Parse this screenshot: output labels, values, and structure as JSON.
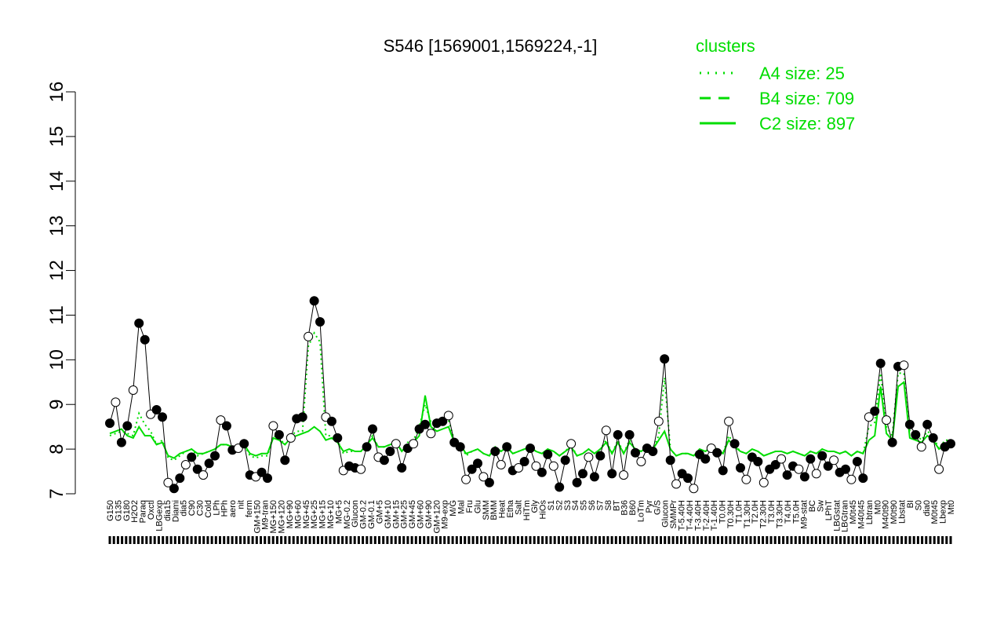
{
  "chart_data": {
    "type": "line",
    "title": "S546 [1569001,1569224,-1]",
    "xlabel": "",
    "ylabel": "",
    "ylim": [
      7,
      16
    ],
    "yticks": [
      7,
      8,
      9,
      10,
      11,
      12,
      13,
      14,
      15,
      16
    ],
    "grid": false,
    "legend": {
      "title": "clusters",
      "placement": "top-right",
      "entries": [
        {
          "label": "A4 size: 25",
          "style": "dotted"
        },
        {
          "label": "B4 size: 709",
          "style": "dashed"
        },
        {
          "label": "C2 size: 897",
          "style": "solid"
        }
      ]
    },
    "colors": {
      "series": "#00dd00",
      "points": "#000000",
      "axis": "#000000"
    },
    "xtick_labels": [
      "G150",
      "G135",
      "G180",
      "H2O2",
      "Paraq",
      "Oxctl",
      "LBGexp",
      "dia15",
      "Diami",
      "dia5",
      "C90",
      "C30",
      "Cold",
      "LPh",
      "HPh",
      "aero",
      "nit",
      "ferm",
      "GM+150",
      "M9-tran",
      "MG+150",
      "MG+120",
      "MG+90",
      "MG+60",
      "MG+45",
      "MG+25",
      "MG+15",
      "MG+10",
      "MG+5",
      "MG-0.2",
      "Glucon",
      "GM-0.2",
      "GM-0.1",
      "GM+5",
      "GM+10",
      "GM+15",
      "GM+25",
      "GM+45",
      "GM+60",
      "GM+90",
      "GM+120",
      "M9-exp",
      "M/G",
      "Mal",
      "Fru",
      "Glu",
      "SMM",
      "BMM",
      "Heat",
      "Etha",
      "Salt",
      "HiTm",
      "Gly",
      "HiOs",
      "S1",
      "S2",
      "S3",
      "S4",
      "S5",
      "S6",
      "S7",
      "S8",
      "BT",
      "B36",
      "B60",
      "LoTm",
      "Pyr",
      "G/S",
      "Glucon",
      "SMMPr",
      "T-5.40H",
      "T-4.40H",
      "T-3.40H",
      "T-2.40H",
      "T-1.40H",
      "T0.0H",
      "T0.30H",
      "T1.0H",
      "T1.30H",
      "T2.0H",
      "T2.30H",
      "T3.0H",
      "T3.30H",
      "T4.0H",
      "T5.0H",
      "M9-stat",
      "BC",
      "Sw",
      "LPhT",
      "LBGstat",
      "LBGtran",
      "M0t45",
      "M40t45",
      "Lbtran",
      "Mt0",
      "M40t90",
      "M0t90",
      "Lbstat",
      "BI",
      "S0",
      "dia0",
      "M0t45",
      "Lbexp",
      "Mt0"
    ],
    "n_points": 207,
    "x_range": [
      1,
      207
    ],
    "points_y": [
      8.58,
      9.05,
      8.15,
      8.52,
      9.32,
      10.82,
      10.45,
      8.78,
      8.88,
      8.72,
      7.25,
      7.12,
      7.35,
      7.65,
      7.82,
      7.55,
      7.42,
      7.68,
      7.85,
      8.65,
      8.52,
      7.98,
      8.02,
      8.12,
      7.42,
      7.38,
      7.48,
      7.35,
      8.52,
      8.32,
      7.75,
      8.25,
      8.68,
      8.72,
      10.52,
      11.32,
      10.85,
      8.72,
      8.62,
      8.25,
      7.52,
      7.62,
      7.58,
      7.55,
      8.05,
      8.45,
      7.82,
      7.75,
      7.95,
      8.12,
      7.58,
      8.02,
      8.12,
      8.45,
      8.55,
      8.35,
      8.58,
      8.62,
      8.75,
      8.15,
      8.05,
      7.32,
      7.55,
      7.68,
      7.38,
      7.25,
      7.95,
      7.65,
      8.05,
      7.52,
      7.58,
      7.72,
      8.02,
      7.62,
      7.48,
      7.88,
      7.62,
      7.15,
      7.75,
      8.12,
      7.25,
      7.45,
      7.82,
      7.38,
      7.85,
      8.42,
      7.45,
      8.32,
      7.42,
      8.32,
      7.92,
      7.72,
      8.02,
      7.95,
      8.62,
      10.02,
      7.75,
      7.22,
      7.45,
      7.35,
      7.12,
      7.88,
      7.78,
      8.02,
      7.92,
      7.52,
      8.62,
      8.12,
      7.58,
      7.32,
      7.82,
      7.72,
      7.25,
      7.55,
      7.65,
      7.78,
      7.42,
      7.62,
      7.55,
      7.38,
      7.78,
      7.45,
      7.85,
      7.62,
      7.75,
      7.48,
      7.55,
      7.32,
      7.72,
      7.35,
      8.72,
      8.85,
      9.92,
      8.65,
      8.15,
      9.85,
      9.88,
      8.55,
      8.32,
      8.05,
      8.55,
      8.25,
      7.55,
      8.05,
      8.12
    ],
    "line_A4": [
      8.3,
      8.35,
      8.4,
      8.35,
      8.3,
      8.8,
      8.55,
      8.4,
      8.1,
      8.2,
      7.8,
      7.75,
      7.85,
      7.95,
      8.0,
      7.85,
      7.9,
      7.95,
      8.0,
      8.1,
      8.1,
      8.05,
      8.05,
      8.1,
      7.85,
      7.8,
      7.85,
      7.85,
      8.3,
      8.25,
      8.1,
      8.3,
      8.4,
      8.4,
      10.3,
      10.6,
      10.4,
      8.3,
      8.3,
      8.2,
      7.9,
      7.95,
      7.95,
      7.95,
      8.1,
      8.3,
      8.05,
      8.05,
      8.1,
      8.2,
      7.95,
      8.15,
      8.2,
      8.5,
      9.0,
      8.6,
      8.5,
      8.6,
      8.65,
      8.2,
      8.15,
      7.85,
      7.95,
      8.0,
      7.9,
      7.85,
      8.05,
      7.95,
      8.05,
      7.9,
      7.95,
      8.0,
      8.05,
      7.95,
      7.9,
      8.0,
      7.95,
      7.85,
      7.95,
      8.1,
      7.85,
      7.9,
      8.0,
      7.9,
      8.0,
      8.2,
      7.9,
      8.2,
      7.9,
      8.2,
      8.0,
      7.95,
      8.05,
      8.0,
      8.3,
      9.6,
      8.0,
      7.85,
      7.9,
      7.9,
      7.85,
      8.0,
      7.95,
      8.05,
      8.0,
      7.9,
      8.3,
      8.1,
      7.95,
      7.9,
      8.0,
      7.95,
      7.85,
      7.9,
      7.95,
      7.95,
      7.9,
      7.95,
      7.9,
      7.85,
      7.95,
      7.9,
      8.0,
      7.95,
      7.95,
      7.9,
      7.95,
      7.85,
      7.95,
      7.9,
      8.5,
      8.6,
      9.7,
      8.5,
      8.3,
      9.7,
      9.7,
      8.4,
      8.35,
      8.2,
      8.4,
      8.3,
      8.0,
      8.2,
      8.2
    ],
    "line_C2": [
      8.35,
      8.4,
      8.45,
      8.3,
      8.25,
      8.5,
      8.3,
      8.3,
      8.1,
      8.15,
      7.85,
      7.8,
      7.9,
      7.95,
      8.0,
      7.9,
      7.9,
      7.95,
      8.0,
      8.1,
      8.1,
      8.05,
      8.05,
      8.1,
      7.9,
      7.85,
      7.9,
      7.9,
      8.25,
      8.2,
      8.1,
      8.25,
      8.3,
      8.35,
      8.4,
      8.5,
      8.4,
      8.2,
      8.25,
      8.15,
      7.95,
      8.0,
      7.95,
      7.95,
      8.1,
      8.25,
      8.05,
      8.05,
      8.1,
      8.15,
      7.95,
      8.1,
      8.15,
      8.3,
      9.2,
      8.5,
      8.4,
      8.45,
      8.5,
      8.15,
      8.1,
      7.9,
      7.95,
      8.0,
      7.9,
      7.85,
      8.05,
      7.95,
      8.05,
      7.9,
      7.95,
      8.0,
      8.05,
      7.95,
      7.9,
      8.0,
      7.95,
      7.85,
      7.95,
      8.05,
      7.85,
      7.9,
      8.0,
      7.9,
      8.0,
      8.15,
      7.9,
      8.15,
      7.9,
      8.15,
      8.0,
      7.95,
      8.05,
      8.0,
      8.2,
      8.4,
      8.0,
      7.85,
      7.9,
      7.9,
      7.85,
      8.0,
      7.95,
      8.05,
      8.0,
      7.9,
      8.2,
      8.05,
      7.95,
      7.9,
      8.0,
      7.95,
      7.85,
      7.9,
      7.95,
      7.95,
      7.9,
      7.95,
      7.9,
      7.85,
      7.95,
      7.9,
      8.0,
      7.95,
      7.95,
      7.9,
      7.95,
      7.85,
      7.95,
      7.9,
      8.2,
      8.3,
      9.4,
      8.35,
      8.2,
      9.4,
      9.5,
      8.25,
      8.2,
      8.15,
      8.3,
      8.2,
      8.0,
      8.1,
      8.15
    ]
  }
}
